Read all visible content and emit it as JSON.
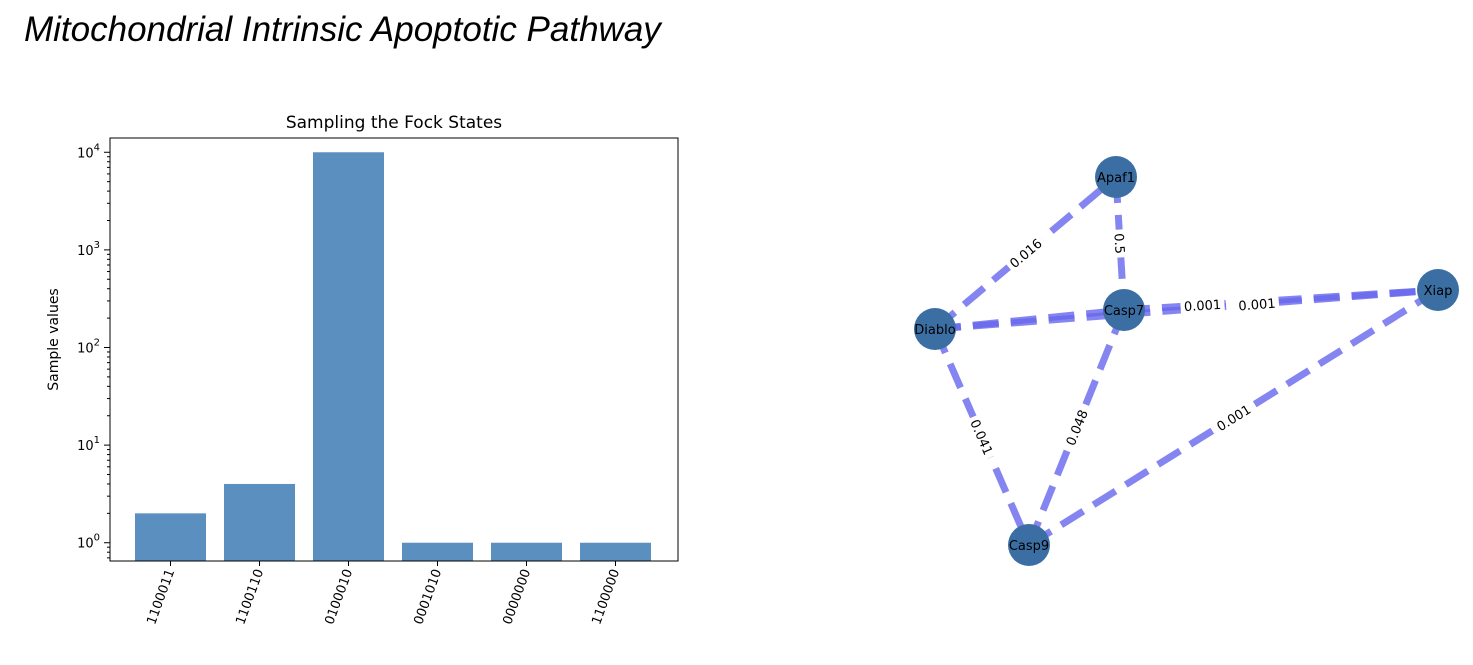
{
  "page": {
    "title": "Mitochondrial Intrinsic Apoptotic Pathway"
  },
  "chart_data": [
    {
      "type": "bar",
      "title": "Sampling the Fock States",
      "xlabel": "",
      "ylabel": "Sample values",
      "yscale": "log",
      "ylim": [
        0.65,
        14000
      ],
      "yticks": [
        1,
        10,
        100,
        1000,
        10000
      ],
      "ytick_labels": [
        {
          "base": "10",
          "exp": "0"
        },
        {
          "base": "10",
          "exp": "1"
        },
        {
          "base": "10",
          "exp": "2"
        },
        {
          "base": "10",
          "exp": "3"
        },
        {
          "base": "10",
          "exp": "4"
        }
      ],
      "categories": [
        "1100011",
        "1100110",
        "0100010",
        "0001010",
        "0000000",
        "1100000"
      ],
      "values": [
        2,
        4,
        10000,
        1,
        1,
        1
      ],
      "bar_color": "#5b8fbf",
      "grid": false,
      "xtick_rotation": -70
    },
    {
      "type": "network",
      "node_color": "#3b6fa4",
      "edge_color": "#6666ee",
      "nodes": [
        {
          "id": "Apaf1",
          "label": "Apaf1"
        },
        {
          "id": "Casp7",
          "label": "Casp7"
        },
        {
          "id": "Diablo",
          "label": "Diablo"
        },
        {
          "id": "Xiap",
          "label": "Xiap"
        },
        {
          "id": "Casp9",
          "label": "Casp9"
        }
      ],
      "edges": [
        {
          "source": "Diablo",
          "target": "Apaf1",
          "label": "0.016"
        },
        {
          "source": "Apaf1",
          "target": "Casp7",
          "label": "0.5"
        },
        {
          "source": "Diablo",
          "target": "Casp7",
          "label": ""
        },
        {
          "source": "Casp7",
          "target": "Xiap",
          "label": "0.001"
        },
        {
          "source": "Diablo",
          "target": "Xiap",
          "label": "0.001"
        },
        {
          "source": "Diablo",
          "target": "Casp9",
          "label": "0.041"
        },
        {
          "source": "Casp7",
          "target": "Casp9",
          "label": "0.048"
        },
        {
          "source": "Casp9",
          "target": "Xiap",
          "label": "0.001"
        }
      ]
    }
  ]
}
